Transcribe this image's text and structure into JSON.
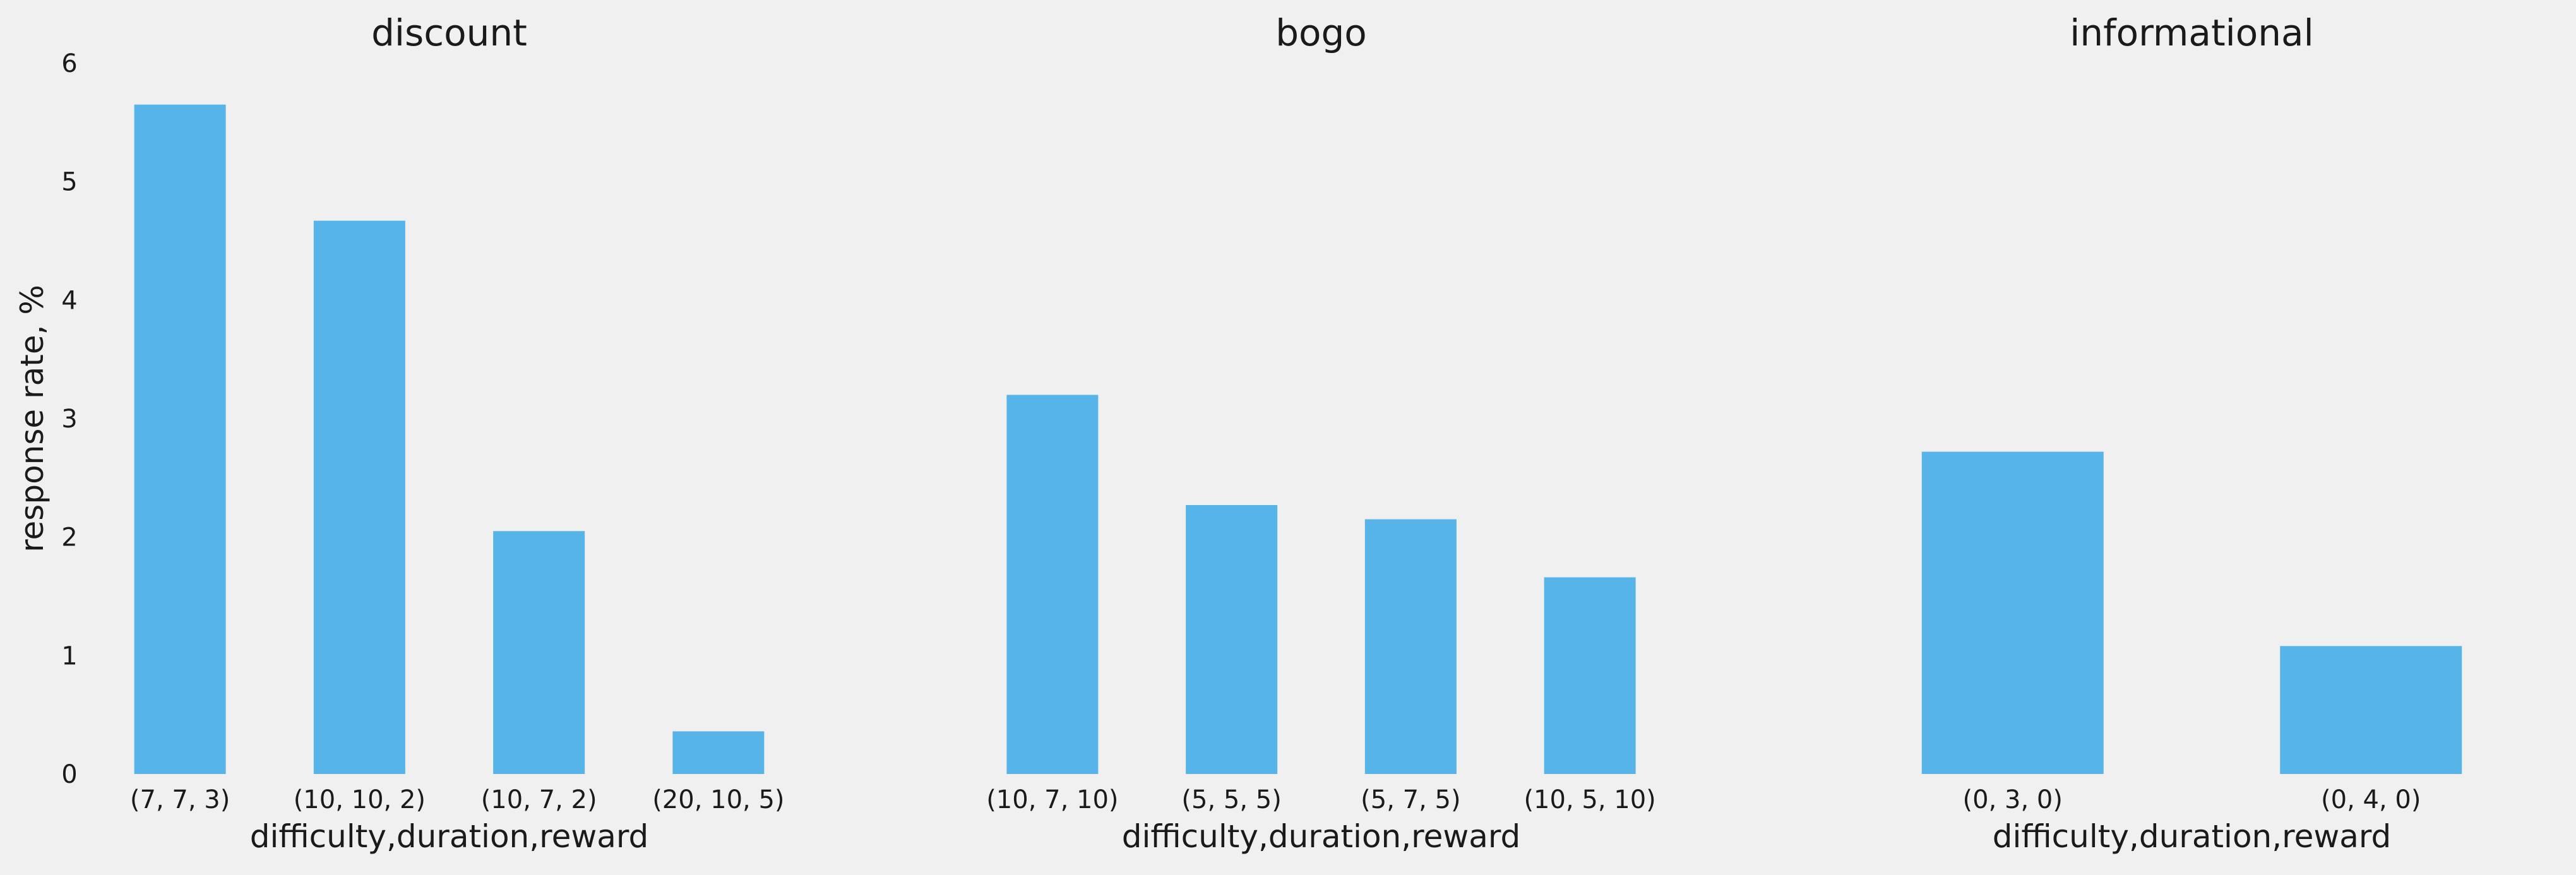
{
  "colors": {
    "background": "#f0f0f0",
    "bar": "#56b4e9",
    "text": "#1a1a1a"
  },
  "chart_data": [
    {
      "type": "bar",
      "title": "discount",
      "xlabel": "difficulty,duration,reward",
      "ylabel": "response rate, %",
      "ylim": [
        0,
        6
      ],
      "yticks": [
        0,
        1,
        2,
        3,
        4,
        5,
        6
      ],
      "grid": false,
      "categories": [
        "(7, 7, 3)",
        "(10, 10, 2)",
        "(10, 7, 2)",
        "(20, 10, 5)"
      ],
      "values": [
        5.65,
        4.67,
        2.05,
        0.36
      ]
    },
    {
      "type": "bar",
      "title": "bogo",
      "xlabel": "difficulty,duration,reward",
      "ylabel": "",
      "ylim": [
        0,
        6
      ],
      "grid": false,
      "categories": [
        "(10, 7, 10)",
        "(5, 5, 5)",
        "(5, 7, 5)",
        "(10, 5, 10)"
      ],
      "values": [
        3.2,
        2.27,
        2.15,
        1.66
      ]
    },
    {
      "type": "bar",
      "title": "informational",
      "xlabel": "difficulty,duration,reward",
      "ylabel": "",
      "ylim": [
        0,
        6
      ],
      "grid": false,
      "categories": [
        "(0, 3, 0)",
        "(0, 4, 0)"
      ],
      "values": [
        2.72,
        1.08
      ]
    }
  ]
}
